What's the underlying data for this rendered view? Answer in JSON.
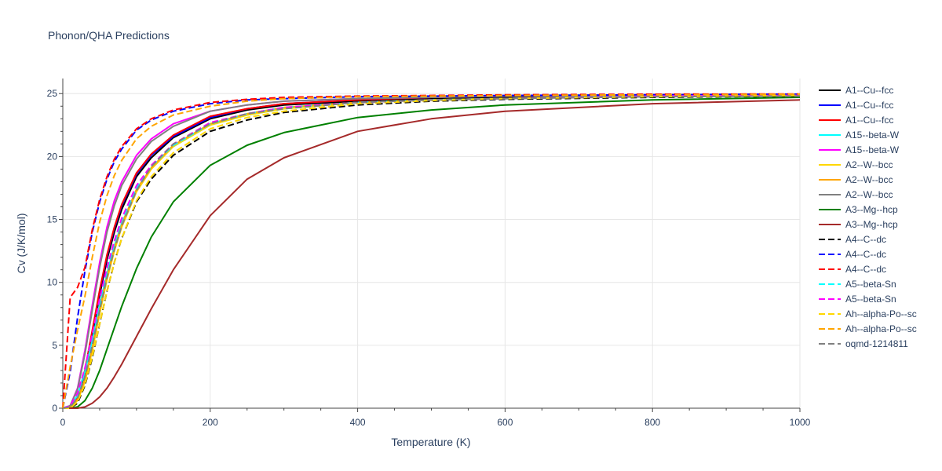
{
  "chart_data": {
    "type": "line",
    "title": "Phonon/QHA Predictions",
    "xlabel": "Temperature (K)",
    "ylabel": "Cv (J/K/mol)",
    "xlim": [
      0,
      1000
    ],
    "ylim": [
      0,
      26.2
    ],
    "x_ticks": [
      0,
      200,
      400,
      600,
      800,
      1000
    ],
    "y_ticks": [
      0,
      5,
      10,
      15,
      20,
      25
    ],
    "grid": true,
    "legend_position": "right",
    "x": [
      0,
      10,
      20,
      30,
      40,
      50,
      60,
      70,
      80,
      100,
      120,
      150,
      200,
      250,
      300,
      400,
      500,
      600,
      800,
      1000
    ],
    "series": [
      {
        "name": "A1--Cu--fcc",
        "color": "#000000",
        "dash": "solid",
        "values": [
          0,
          0.1,
          0.8,
          2.8,
          5.8,
          9.0,
          11.8,
          14.0,
          15.8,
          18.4,
          19.9,
          21.5,
          23.0,
          23.7,
          24.1,
          24.4,
          24.6,
          24.7,
          24.8,
          24.85
        ]
      },
      {
        "name": "A1--Cu--fcc",
        "color": "#0000ff",
        "dash": "solid",
        "values": [
          0,
          0.1,
          0.9,
          3.0,
          6.1,
          9.3,
          12.1,
          14.3,
          16.1,
          18.6,
          20.1,
          21.6,
          23.1,
          23.8,
          24.2,
          24.5,
          24.7,
          24.8,
          24.9,
          24.95
        ]
      },
      {
        "name": "A1--Cu--fcc",
        "color": "#ff0000",
        "dash": "solid",
        "values": [
          0,
          0.1,
          0.9,
          3.0,
          6.2,
          9.4,
          12.2,
          14.4,
          16.2,
          18.7,
          20.2,
          21.7,
          23.2,
          23.8,
          24.2,
          24.5,
          24.7,
          24.8,
          24.9,
          24.95
        ]
      },
      {
        "name": "A15--beta-W",
        "color": "#00ffff",
        "dash": "solid",
        "values": [
          0,
          0.2,
          1.0,
          2.9,
          5.4,
          8.2,
          10.7,
          12.9,
          14.7,
          17.3,
          19.1,
          20.8,
          22.5,
          23.3,
          23.8,
          24.3,
          24.5,
          24.6,
          24.8,
          24.85
        ]
      },
      {
        "name": "A15--beta-W",
        "color": "#ff00ff",
        "dash": "solid",
        "values": [
          0,
          0.2,
          1.6,
          4.6,
          8.2,
          11.6,
          14.4,
          16.5,
          18.0,
          20.1,
          21.4,
          22.6,
          23.6,
          24.1,
          24.4,
          24.6,
          24.7,
          24.8,
          24.85,
          24.9
        ]
      },
      {
        "name": "A2--W--bcc",
        "color": "#ffd700",
        "dash": "solid",
        "values": [
          0,
          0.1,
          0.6,
          2.1,
          4.6,
          7.5,
          10.2,
          12.5,
          14.4,
          17.2,
          19.0,
          20.8,
          22.5,
          23.3,
          23.8,
          24.3,
          24.5,
          24.6,
          24.8,
          24.85
        ]
      },
      {
        "name": "A2--W--bcc",
        "color": "#ffa500",
        "dash": "solid",
        "values": [
          0,
          0.1,
          0.7,
          2.3,
          4.8,
          7.8,
          10.5,
          12.7,
          14.6,
          17.4,
          19.1,
          20.9,
          22.6,
          23.4,
          23.9,
          24.3,
          24.5,
          24.6,
          24.8,
          24.85
        ]
      },
      {
        "name": "A2--W--bcc",
        "color": "#808080",
        "dash": "solid",
        "values": [
          0,
          0.2,
          1.5,
          4.3,
          7.8,
          11.2,
          14.0,
          16.1,
          17.7,
          19.8,
          21.2,
          22.4,
          23.6,
          24.1,
          24.4,
          24.6,
          24.7,
          24.8,
          24.85,
          24.9
        ]
      },
      {
        "name": "A3--Mg--hcp",
        "color": "#008000",
        "dash": "solid",
        "values": [
          0,
          0.0,
          0.1,
          0.6,
          1.6,
          3.0,
          4.7,
          6.4,
          8.1,
          11.1,
          13.6,
          16.4,
          19.3,
          20.9,
          21.9,
          23.1,
          23.7,
          24.1,
          24.5,
          24.7
        ]
      },
      {
        "name": "A3--Mg--hcp",
        "color": "#a52a2a",
        "dash": "solid",
        "values": [
          0,
          0.0,
          0.0,
          0.1,
          0.4,
          0.9,
          1.6,
          2.5,
          3.5,
          5.7,
          7.9,
          11.0,
          15.3,
          18.2,
          19.9,
          22.0,
          23.0,
          23.6,
          24.2,
          24.5
        ]
      },
      {
        "name": "A4--C--dc",
        "color": "#000000",
        "dash": "dash",
        "values": [
          0,
          0.0,
          0.4,
          1.8,
          4.0,
          6.7,
          9.3,
          11.6,
          13.5,
          16.4,
          18.2,
          20.1,
          22.0,
          22.9,
          23.5,
          24.1,
          24.4,
          24.55,
          24.7,
          24.8
        ]
      },
      {
        "name": "A4--C--dc",
        "color": "#0000ff",
        "dash": "dash",
        "values": [
          0,
          2.9,
          7.2,
          10.9,
          14.0,
          16.4,
          18.2,
          19.6,
          20.6,
          22.1,
          22.9,
          23.6,
          24.2,
          24.5,
          24.6,
          24.75,
          24.8,
          24.85,
          24.9,
          24.95
        ]
      },
      {
        "name": "A4--C--dc",
        "color": "#ff0000",
        "dash": "dash",
        "values": [
          0,
          8.8,
          9.6,
          11.2,
          14.2,
          16.6,
          18.4,
          19.8,
          20.8,
          22.2,
          23.0,
          23.7,
          24.3,
          24.55,
          24.7,
          24.8,
          24.85,
          24.9,
          24.95,
          24.97
        ]
      },
      {
        "name": "A5--beta-Sn",
        "color": "#00ffff",
        "dash": "dash",
        "values": [
          0,
          0.2,
          1.1,
          3.0,
          5.6,
          8.4,
          10.9,
          13.1,
          14.9,
          17.5,
          19.2,
          20.9,
          22.6,
          23.4,
          23.9,
          24.3,
          24.5,
          24.6,
          24.8,
          24.85
        ]
      },
      {
        "name": "A5--beta-Sn",
        "color": "#ff00ff",
        "dash": "dash",
        "values": [
          0,
          0.2,
          1.2,
          3.2,
          5.9,
          8.7,
          11.2,
          13.3,
          15.1,
          17.7,
          19.3,
          21.0,
          22.7,
          23.4,
          23.9,
          24.3,
          24.5,
          24.6,
          24.8,
          24.85
        ]
      },
      {
        "name": "Ah--alpha-Po--sc",
        "color": "#ffd700",
        "dash": "dash",
        "values": [
          0,
          0.0,
          0.5,
          1.9,
          4.1,
          6.7,
          9.3,
          11.6,
          13.5,
          16.5,
          18.4,
          20.3,
          22.2,
          23.1,
          23.6,
          24.2,
          24.45,
          24.6,
          24.75,
          24.85
        ]
      },
      {
        "name": "Ah--alpha-Po--sc",
        "color": "#ffa500",
        "dash": "dash",
        "values": [
          0,
          3.3,
          6.2,
          8.9,
          12.0,
          14.8,
          16.9,
          18.5,
          19.7,
          21.4,
          22.4,
          23.3,
          24.0,
          24.4,
          24.6,
          24.75,
          24.8,
          24.85,
          24.9,
          24.95
        ]
      },
      {
        "name": "oqmd-1214811",
        "color": "#808080",
        "dash": "dash",
        "values": [
          0,
          0.1,
          0.8,
          2.5,
          5.0,
          7.8,
          10.4,
          12.6,
          14.5,
          17.3,
          19.2,
          21.0,
          22.6,
          23.4,
          23.8,
          24.3,
          24.5,
          24.6,
          24.75,
          24.8
        ]
      }
    ]
  }
}
